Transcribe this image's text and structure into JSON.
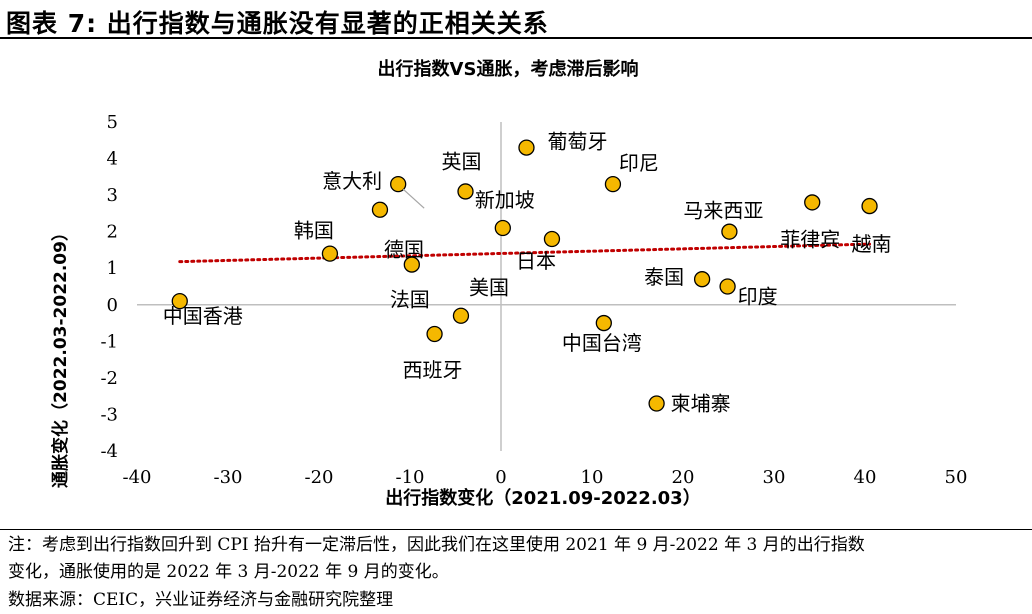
{
  "figure_title": "图表 7: 出行指数与通胀没有显著的正相关关系",
  "note_line1": "注：考虑到出行指数回升到 CPI 抬升有一定滞后性，因此我们在这里使用 2021 年 9 月-2022 年 3 月的出行指数",
  "note_line2": "变化，通胀使用的是 2022 年 3 月-2022 年 9 月的变化。",
  "source": "数据来源：CEIC，兴业证券经济与金融研究院整理",
  "colors": {
    "marker_fill": "#F5B800",
    "marker_stroke": "#000000",
    "trend": "#C00000",
    "axis": "#BFBFBF"
  },
  "chart_data": {
    "type": "scatter",
    "title": "出行指数VS通胀，考虑滞后影响",
    "xlabel": "出行指数变化（2021.09-2022.03）",
    "ylabel": "通胀变化（2022.03-2022.09）",
    "xlim": [
      -40,
      50
    ],
    "ylim": [
      -4,
      5
    ],
    "xticks": [
      -40,
      -30,
      -20,
      -10,
      0,
      10,
      20,
      30,
      40,
      50
    ],
    "yticks": [
      -4,
      -3,
      -2,
      -1,
      0,
      1,
      2,
      3,
      4,
      5
    ],
    "points": [
      {
        "label": "中国香港",
        "x": -35.3,
        "y": 0.1
      },
      {
        "label": "韩国",
        "x": -18.8,
        "y": 1.4
      },
      {
        "label": "意大利",
        "x": -11.3,
        "y": 3.3
      },
      {
        "label": "德国",
        "x": -13.3,
        "y": 2.6
      },
      {
        "label": "法国",
        "x": -9.8,
        "y": 1.1
      },
      {
        "label": "英国",
        "x": -3.9,
        "y": 3.1
      },
      {
        "label": "新加坡",
        "x": 0.2,
        "y": 2.1
      },
      {
        "label": "美国",
        "x": -4.4,
        "y": -0.3
      },
      {
        "label": "西班牙",
        "x": -7.3,
        "y": -0.8
      },
      {
        "label": "葡萄牙",
        "x": 2.8,
        "y": 4.3
      },
      {
        "label": "印尼",
        "x": 12.3,
        "y": 3.3
      },
      {
        "label": "日本",
        "x": 5.6,
        "y": 1.8
      },
      {
        "label": "中国台湾",
        "x": 11.3,
        "y": -0.5
      },
      {
        "label": "柬埔寨",
        "x": 17.1,
        "y": -2.7
      },
      {
        "label": "泰国",
        "x": 22.1,
        "y": 0.7
      },
      {
        "label": "印度",
        "x": 24.9,
        "y": 0.5
      },
      {
        "label": "马来西亚",
        "x": 25.1,
        "y": 2.0
      },
      {
        "label": "菲律宾",
        "x": 34.2,
        "y": 2.8
      },
      {
        "label": "越南",
        "x": 40.5,
        "y": 2.7
      }
    ],
    "trendline": {
      "style": "dotted",
      "x": [
        -35.3,
        40.5
      ],
      "y": [
        1.18,
        1.66
      ]
    }
  }
}
